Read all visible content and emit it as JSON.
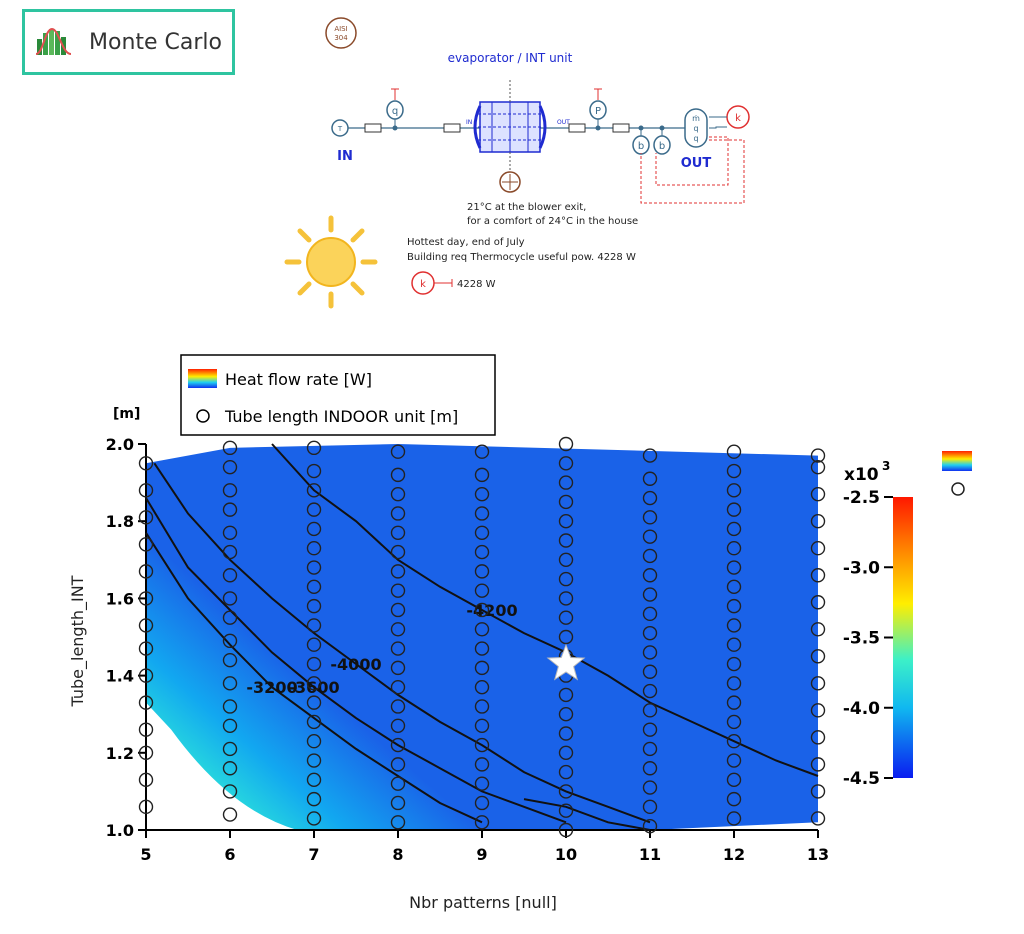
{
  "toolbar": {
    "monte_carlo_label": "Monte Carlo"
  },
  "diagram": {
    "material_badge_line1": "AISI",
    "material_badge_line2": "304",
    "evaporator_title": "evaporator / INT unit",
    "in_label": "IN",
    "out_label": "OUT",
    "port_in": "IN",
    "port_out": "OUT",
    "sensor_q": "q",
    "sensor_p": "P",
    "sensor_b": "b",
    "sensor_m": "ṁ",
    "sensor_k": "k",
    "source_t": "T",
    "note_line1": "21°C at the blower exit,",
    "note_line2": "for a comfort of 24°C in the house",
    "weather_line1": "Hottest day, end of July",
    "weather_line2": "Building req Thermocycle useful pow. 4228 W",
    "power_value": "4228 W",
    "colors": {
      "blue": "#1f2bd0",
      "red": "#e03030",
      "sun": "#f5c23a",
      "teal": "#2ec4a0"
    }
  },
  "chart_data": {
    "type": "heatmap",
    "xlabel": "Nbr patterns [null]",
    "ylabel": "Tube_length_INT",
    "y_unit": "[m]",
    "xlim": [
      5,
      13
    ],
    "ylim": [
      1.0,
      2.0
    ],
    "xticks": [
      "5",
      "6",
      "7",
      "8",
      "9",
      "10",
      "11",
      "12",
      "13"
    ],
    "yticks": [
      "1.0",
      "1.2",
      "1.4",
      "1.6",
      "1.8",
      "2.0"
    ],
    "legend": [
      {
        "symbol": "colormap",
        "label": "Heat flow rate [W]"
      },
      {
        "symbol": "circle",
        "label": "Tube length INDOOR unit [m]"
      }
    ],
    "colorbar": {
      "multiplier": "x10",
      "exponent": "3",
      "range": [
        -4.5,
        -2.5
      ],
      "ticks": [
        "-2.5",
        "-3.0",
        "-3.5",
        "-4.0",
        "-4.5"
      ]
    },
    "contours": [
      {
        "level": -3200,
        "label": "-3200",
        "points": [
          [
            5,
            1.77
          ],
          [
            5.5,
            1.6
          ],
          [
            6,
            1.48
          ],
          [
            6.5,
            1.37
          ],
          [
            7,
            1.29
          ],
          [
            7.5,
            1.21
          ],
          [
            8,
            1.14
          ],
          [
            8.5,
            1.07
          ],
          [
            9,
            1.02
          ]
        ]
      },
      {
        "level": -3600,
        "label": "-3600",
        "points": [
          [
            5,
            1.86
          ],
          [
            5.5,
            1.68
          ],
          [
            6,
            1.57
          ],
          [
            6.5,
            1.46
          ],
          [
            7,
            1.37
          ],
          [
            7.5,
            1.29
          ],
          [
            8,
            1.22
          ],
          [
            8.5,
            1.16
          ],
          [
            9,
            1.1
          ],
          [
            9.5,
            1.06
          ],
          [
            10,
            1.02
          ]
        ]
      },
      {
        "level": -4000,
        "label": "-4000",
        "points": [
          [
            5.1,
            1.95
          ],
          [
            5.5,
            1.82
          ],
          [
            6,
            1.7
          ],
          [
            6.5,
            1.6
          ],
          [
            7,
            1.51
          ],
          [
            7.5,
            1.43
          ],
          [
            8,
            1.35
          ],
          [
            8.5,
            1.28
          ],
          [
            9,
            1.22
          ],
          [
            9.5,
            1.15
          ],
          [
            10,
            1.1
          ],
          [
            10.5,
            1.06
          ],
          [
            11,
            1.02
          ]
        ]
      },
      {
        "level": -4200,
        "label": "-4200",
        "points": [
          [
            6.5,
            2.0
          ],
          [
            7,
            1.88
          ],
          [
            7.5,
            1.8
          ],
          [
            8,
            1.7
          ],
          [
            8.5,
            1.63
          ],
          [
            9,
            1.57
          ],
          [
            9.5,
            1.51
          ],
          [
            10,
            1.46
          ],
          [
            10.5,
            1.4
          ],
          [
            11,
            1.33
          ],
          [
            11.5,
            1.28
          ],
          [
            12,
            1.23
          ],
          [
            12.5,
            1.18
          ],
          [
            13,
            1.14
          ]
        ]
      },
      {
        "level": -4400,
        "label": "",
        "points": [
          [
            9.5,
            1.08
          ],
          [
            10,
            1.06
          ],
          [
            10.5,
            1.02
          ],
          [
            11,
            1.0
          ]
        ]
      }
    ],
    "samples": [
      {
        "x": 5,
        "y": [
          1.06,
          1.13,
          1.2,
          1.26,
          1.33,
          1.4,
          1.47,
          1.53,
          1.6,
          1.67,
          1.74,
          1.81,
          1.88,
          1.95
        ]
      },
      {
        "x": 6,
        "y": [
          1.04,
          1.1,
          1.16,
          1.21,
          1.27,
          1.32,
          1.38,
          1.44,
          1.49,
          1.55,
          1.6,
          1.66,
          1.72,
          1.77,
          1.83,
          1.88,
          1.94,
          1.99
        ]
      },
      {
        "x": 7,
        "y": [
          1.03,
          1.08,
          1.13,
          1.18,
          1.23,
          1.28,
          1.33,
          1.38,
          1.43,
          1.48,
          1.53,
          1.58,
          1.63,
          1.68,
          1.73,
          1.78,
          1.83,
          1.88,
          1.93,
          1.99
        ]
      },
      {
        "x": 8,
        "y": [
          1.02,
          1.07,
          1.12,
          1.17,
          1.22,
          1.27,
          1.32,
          1.37,
          1.42,
          1.47,
          1.52,
          1.57,
          1.62,
          1.67,
          1.72,
          1.77,
          1.82,
          1.87,
          1.92,
          1.98
        ]
      },
      {
        "x": 9,
        "y": [
          1.02,
          1.07,
          1.12,
          1.17,
          1.22,
          1.27,
          1.32,
          1.37,
          1.42,
          1.47,
          1.52,
          1.57,
          1.62,
          1.67,
          1.72,
          1.77,
          1.82,
          1.87,
          1.92,
          1.98
        ]
      },
      {
        "x": 10,
        "y": [
          1.0,
          1.05,
          1.1,
          1.15,
          1.2,
          1.25,
          1.3,
          1.35,
          1.4,
          1.45,
          1.5,
          1.55,
          1.6,
          1.65,
          1.7,
          1.75,
          1.8,
          1.85,
          1.9,
          1.95,
          2.0
        ]
      },
      {
        "x": 11,
        "y": [
          1.01,
          1.06,
          1.11,
          1.16,
          1.21,
          1.26,
          1.31,
          1.36,
          1.41,
          1.46,
          1.51,
          1.56,
          1.61,
          1.66,
          1.71,
          1.76,
          1.81,
          1.86,
          1.91,
          1.97
        ]
      },
      {
        "x": 12,
        "y": [
          1.03,
          1.08,
          1.13,
          1.18,
          1.23,
          1.28,
          1.33,
          1.38,
          1.43,
          1.48,
          1.53,
          1.58,
          1.63,
          1.68,
          1.73,
          1.78,
          1.83,
          1.88,
          1.93,
          1.98
        ]
      },
      {
        "x": 13,
        "y": [
          1.03,
          1.1,
          1.17,
          1.24,
          1.31,
          1.38,
          1.45,
          1.52,
          1.59,
          1.66,
          1.73,
          1.8,
          1.87,
          1.94,
          1.97
        ]
      }
    ],
    "optimum": {
      "x": 10,
      "y": 1.43
    }
  }
}
